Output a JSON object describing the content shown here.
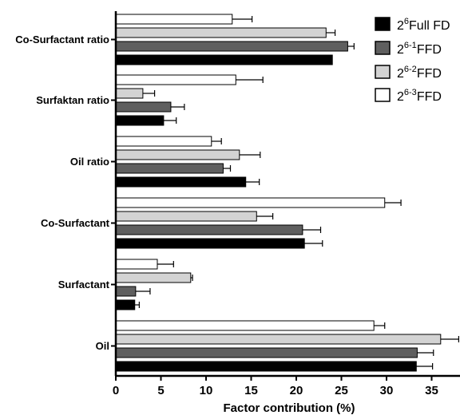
{
  "chart_data": {
    "type": "bar",
    "orientation": "horizontal",
    "categories": [
      "Co-Surfactant ratio",
      "Surfaktan ratio",
      "Oil ratio",
      "Co-Surfactant",
      "Surfactant",
      "Oil"
    ],
    "series": [
      {
        "name_base": "2",
        "name_sup": "6",
        "name_suffix": "Full FD",
        "color": "#000000",
        "values": [
          24.0,
          5.3,
          14.4,
          20.9,
          2.1,
          33.3
        ],
        "errors": [
          0.0,
          1.4,
          1.5,
          2.0,
          0.5,
          1.8
        ]
      },
      {
        "name_base": "2",
        "name_sup": "6-1",
        "name_suffix": "FFD",
        "color": "#5f5f5f",
        "values": [
          25.7,
          6.1,
          11.9,
          20.7,
          2.2,
          33.4
        ],
        "errors": [
          0.7,
          1.5,
          0.8,
          2.0,
          1.6,
          1.8
        ]
      },
      {
        "name_base": "2",
        "name_sup": "6-2",
        "name_suffix": "FFD",
        "color": "#d3d3d3",
        "values": [
          23.3,
          3.0,
          13.7,
          15.6,
          8.3,
          36.0
        ],
        "errors": [
          1.0,
          1.3,
          2.3,
          1.8,
          0.2,
          2.0
        ]
      },
      {
        "name_base": "2",
        "name_sup": "6-3",
        "name_suffix": "FFD",
        "color": "#ffffff",
        "values": [
          12.9,
          13.3,
          10.6,
          29.8,
          4.6,
          28.6
        ],
        "errors": [
          2.2,
          3.0,
          1.1,
          1.8,
          1.8,
          1.2
        ]
      }
    ],
    "xlim": [
      0,
      39
    ],
    "xticks": [
      0,
      5,
      10,
      15,
      20,
      25,
      30,
      35
    ],
    "xlabel": "Factor contribution (%)",
    "ylabel": "",
    "title": "",
    "legend_position": "top-right",
    "grid": false
  }
}
